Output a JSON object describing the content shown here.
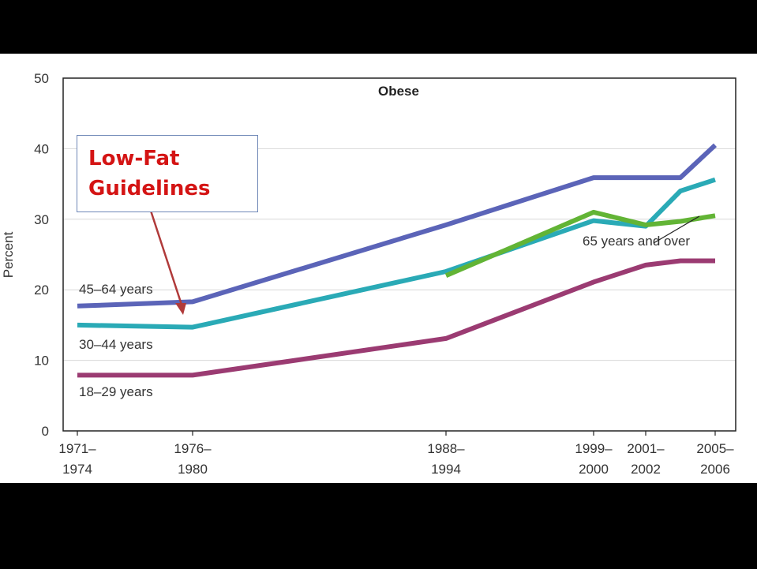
{
  "chart_data": {
    "type": "line",
    "title": "Obese",
    "ylabel": "Percent",
    "ylim": [
      0,
      50
    ],
    "yticks": [
      0,
      10,
      20,
      30,
      40,
      50
    ],
    "xticks": [
      {
        "label": [
          "1971–",
          "1974"
        ]
      },
      {
        "label": [
          "1976–",
          "1980"
        ]
      },
      {
        "label": [
          "1988–",
          "1994"
        ]
      },
      {
        "label": [
          "1999–",
          "2000"
        ]
      },
      {
        "label": [
          "2001–",
          "2002"
        ]
      },
      {
        "label": [
          "2005–",
          "2006"
        ]
      }
    ],
    "series": [
      {
        "name": "45–64 years",
        "color": "#5b64b8",
        "points": [
          [
            1972.5,
            17.7
          ],
          [
            1978,
            18.3
          ],
          [
            1991,
            29.2
          ],
          [
            1999.5,
            35.9
          ],
          [
            2001.5,
            35.9
          ],
          [
            2003.5,
            35.9
          ],
          [
            2005.5,
            40.5
          ]
        ]
      },
      {
        "name": "30–44 years",
        "color": "#2aaab6",
        "points": [
          [
            1972.5,
            15.0
          ],
          [
            1978,
            14.7
          ],
          [
            1991,
            22.6
          ],
          [
            1999.5,
            29.8
          ],
          [
            2001.5,
            29.0
          ],
          [
            2003.5,
            34.0
          ],
          [
            2005.5,
            35.6
          ]
        ]
      },
      {
        "name": "18–29 years",
        "color": "#9b3b72",
        "points": [
          [
            1972.5,
            7.9
          ],
          [
            1978,
            7.9
          ],
          [
            1991,
            13.1
          ],
          [
            1999.5,
            21.1
          ],
          [
            2001.5,
            23.5
          ],
          [
            2003.5,
            24.1
          ],
          [
            2005.5,
            24.1
          ]
        ]
      },
      {
        "name": "65 years and over",
        "color": "#62b435",
        "points": [
          [
            1991,
            22.0
          ],
          [
            1999.5,
            31.0
          ],
          [
            2001.5,
            29.2
          ],
          [
            2003.5,
            29.7
          ],
          [
            2005.5,
            30.5
          ]
        ]
      }
    ],
    "annotations": [
      {
        "text": "Low-Fat",
        "text2": "Guidelines",
        "color": "#d41414"
      }
    ]
  }
}
